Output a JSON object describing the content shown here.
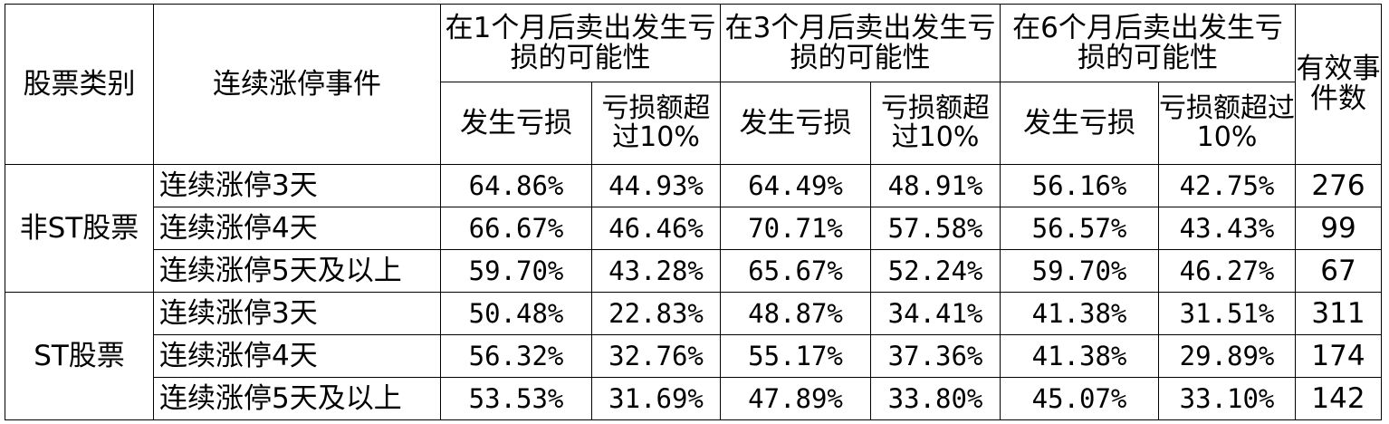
{
  "table": {
    "headers": {
      "category": "股票类别",
      "event": "连续涨停事件",
      "groups": [
        {
          "title": "在1个月后卖出发生亏损的可能性"
        },
        {
          "title": "在3个月后卖出发生亏损的可能性"
        },
        {
          "title": "在6个月后卖出发生亏损的可能性"
        }
      ],
      "sub_loss": "发生亏损",
      "sub_over10": "亏损额超过10%",
      "valid": "有效事件数"
    },
    "groups": [
      {
        "category": "非ST股票",
        "rows": [
          {
            "event": "连续涨停3天",
            "m1_loss": "64.86%",
            "m1_over": "44.93%",
            "m3_loss": "64.49%",
            "m3_over": "48.91%",
            "m6_loss": "56.16%",
            "m6_over": "42.75%",
            "count": "276"
          },
          {
            "event": "连续涨停4天",
            "m1_loss": "66.67%",
            "m1_over": "46.46%",
            "m3_loss": "70.71%",
            "m3_over": "57.58%",
            "m6_loss": "56.57%",
            "m6_over": "43.43%",
            "count": "99"
          },
          {
            "event": "连续涨停5天及以上",
            "m1_loss": "59.70%",
            "m1_over": "43.28%",
            "m3_loss": "65.67%",
            "m3_over": "52.24%",
            "m6_loss": "59.70%",
            "m6_over": "46.27%",
            "count": "67"
          }
        ]
      },
      {
        "category": "ST股票",
        "rows": [
          {
            "event": "连续涨停3天",
            "m1_loss": "50.48%",
            "m1_over": "22.83%",
            "m3_loss": "48.87%",
            "m3_over": "34.41%",
            "m6_loss": "41.38%",
            "m6_over": "31.51%",
            "count": "311"
          },
          {
            "event": "连续涨停4天",
            "m1_loss": "56.32%",
            "m1_over": "32.76%",
            "m3_loss": "55.17%",
            "m3_over": "37.36%",
            "m6_loss": "41.38%",
            "m6_over": "29.89%",
            "count": "174"
          },
          {
            "event": "连续涨停5天及以上",
            "m1_loss": "53.53%",
            "m1_over": "31.69%",
            "m3_loss": "47.89%",
            "m3_over": "33.80%",
            "m6_loss": "45.07%",
            "m6_over": "33.10%",
            "count": "142"
          }
        ]
      }
    ]
  }
}
